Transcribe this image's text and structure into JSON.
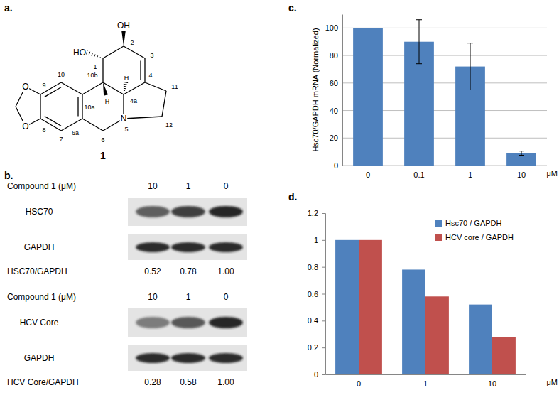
{
  "panels": {
    "a": {
      "label": "a.",
      "atoms": [
        "HO",
        "OH",
        "1",
        "2",
        "3",
        "4",
        "4a",
        "H",
        "10b",
        "H",
        "10a",
        "10",
        "9",
        "O",
        "O",
        "8",
        "7",
        "6a",
        "6",
        "5",
        "N",
        "11",
        "12"
      ],
      "compound": "1"
    },
    "b": {
      "label": "b.",
      "blots": [
        {
          "header": "Compound 1 (μM)",
          "doses": [
            "10",
            "1",
            "0"
          ],
          "rows": [
            "HSC70",
            "GAPDH"
          ],
          "ratio_label": "HSC70/GAPDH",
          "ratios": [
            "0.52",
            "0.78",
            "1.00"
          ]
        },
        {
          "header": "Compound 1 (μM)",
          "doses": [
            "10",
            "1",
            "0"
          ],
          "rows": [
            "HCV Core",
            "GAPDH"
          ],
          "ratio_label": "HCV Core/GAPDH",
          "ratios": [
            "0.28",
            "0.58",
            "1.00"
          ]
        }
      ]
    },
    "c": {
      "label": "c."
    },
    "d": {
      "label": "d."
    }
  },
  "chart_data": [
    {
      "type": "bar",
      "ylabel": "Hsc70/GAPDH mRNA (Normalized)",
      "xlabel": "μM",
      "categories": [
        "0",
        "0.1",
        "1",
        "10"
      ],
      "values": [
        100,
        90,
        72,
        9
      ],
      "errors": [
        0,
        16,
        17,
        1.5
      ],
      "color": "#4f81bd",
      "ylim": [
        0,
        110
      ],
      "yticks": [
        0,
        20,
        40,
        60,
        80,
        100
      ],
      "grid": true
    },
    {
      "type": "bar",
      "xlabel": "μM",
      "categories": [
        "0",
        "1",
        "10"
      ],
      "series": [
        {
          "name": "Hsc70 / GAPDH",
          "color": "#4f81bd",
          "values": [
            1,
            0.78,
            0.52
          ]
        },
        {
          "name": "HCV core / GAPDH",
          "color": "#c0504d",
          "values": [
            1,
            0.58,
            0.28
          ]
        }
      ],
      "ylim": [
        0,
        1.2
      ],
      "yticks": [
        0,
        0.2,
        0.4,
        0.6,
        0.8,
        1,
        1.2
      ],
      "grid": false,
      "legend": "upper right"
    }
  ]
}
